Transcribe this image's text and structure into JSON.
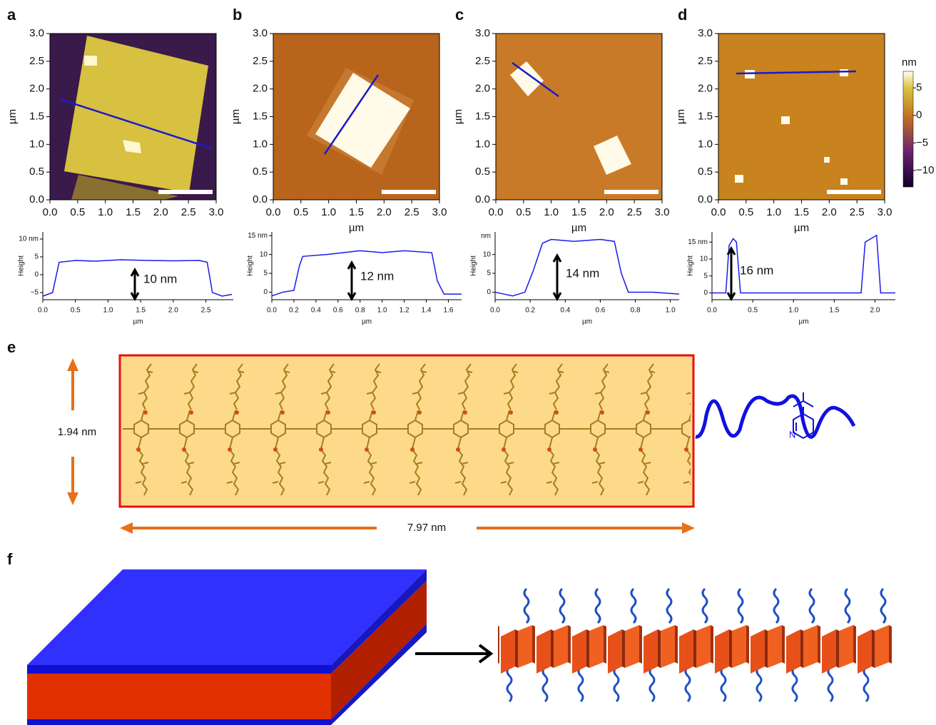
{
  "afm_panels": [
    {
      "label": "a",
      "ylabel": "µm",
      "xlim": [
        0,
        3
      ],
      "ylim": [
        0,
        3
      ],
      "xticks": [
        {
          "value": 0,
          "label": "0.0"
        },
        0.5,
        {
          "value": 1,
          "label": "1.0"
        },
        1.5,
        {
          "value": 2,
          "label": "2.0"
        },
        2.5,
        {
          "value": 3,
          "label": "3.0"
        }
      ],
      "yticks": [
        {
          "value": 0,
          "label": "0.0"
        },
        0.5,
        {
          "value": 1,
          "label": "1.0"
        },
        1.5,
        {
          "value": 2,
          "label": "2.0"
        },
        2.5,
        {
          "value": 3,
          "label": "3.0"
        }
      ]
    },
    {
      "label": "b",
      "ylabel": "µm",
      "xlabel": "µm",
      "xlim": [
        0,
        3
      ],
      "ylim": [
        0,
        3
      ],
      "xticks": [
        {
          "value": 0,
          "label": "0.0"
        },
        0.5,
        {
          "value": 1,
          "label": "1.0"
        },
        1.5,
        {
          "value": 2,
          "label": "2.0"
        },
        2.5,
        {
          "value": 3,
          "label": "3.0"
        }
      ],
      "yticks": [
        {
          "value": 0,
          "label": "0.0"
        },
        0.5,
        {
          "value": 1,
          "label": "1.0"
        },
        1.5,
        {
          "value": 2,
          "label": "2.0"
        },
        2.5,
        {
          "value": 3,
          "label": "3.0"
        }
      ]
    },
    {
      "label": "c",
      "ylabel": "µm",
      "xlabel": "µm",
      "xlim": [
        0,
        3
      ],
      "ylim": [
        0,
        3
      ],
      "xticks": [
        {
          "value": 0,
          "label": "0.0"
        },
        0.5,
        {
          "value": 1,
          "label": "1.0"
        },
        1.5,
        {
          "value": 2,
          "label": "2.0"
        },
        2.5,
        {
          "value": 3,
          "label": "3.0"
        }
      ],
      "yticks": [
        {
          "value": 0,
          "label": "0.0"
        },
        0.5,
        {
          "value": 1,
          "label": "1.0"
        },
        1.5,
        {
          "value": 2,
          "label": "2.0"
        },
        2.5,
        {
          "value": 3,
          "label": "3.0"
        }
      ]
    },
    {
      "label": "d",
      "ylabel": "µm",
      "xlabel": "µm",
      "xlim": [
        0,
        3
      ],
      "ylim": [
        0,
        3
      ],
      "xticks": [
        {
          "value": 0,
          "label": "0.0"
        },
        0.5,
        {
          "value": 1,
          "label": "1.0"
        },
        1.5,
        {
          "value": 2,
          "label": "2.0"
        },
        2.5,
        {
          "value": 3,
          "label": "3.0"
        }
      ],
      "yticks": [
        {
          "value": 0,
          "label": "0.0"
        },
        0.5,
        {
          "value": 1,
          "label": "1.0"
        },
        1.5,
        {
          "value": 2,
          "label": "2.0"
        },
        2.5,
        {
          "value": 3,
          "label": "3.0"
        }
      ]
    }
  ],
  "colorbar": {
    "label": "nm",
    "lim": [
      -13,
      8
    ],
    "ticks": [
      5,
      0,
      {
        "value": -5,
        "label": "−5"
      },
      {
        "value": -10,
        "label": "−10"
      }
    ]
  },
  "chart_data": [
    {
      "type": "line",
      "ylabel": "Height",
      "xlabel": "µm",
      "annotation": "10 nm",
      "color": "#1a1aee",
      "x": [
        0,
        0.15,
        0.25,
        0.5,
        0.8,
        1.2,
        1.6,
        2.0,
        2.4,
        2.52,
        2.6,
        2.75,
        2.9
      ],
      "values": [
        -6,
        -5,
        3.5,
        4,
        3.8,
        4.2,
        4,
        3.9,
        4,
        3.5,
        -5,
        -6,
        -5.5
      ],
      "xlim": [
        0,
        2.92
      ],
      "ylim": [
        -7,
        12
      ],
      "xticks": [
        {
          "value": 0,
          "label": "0.0"
        },
        0.5,
        {
          "value": 1,
          "label": "1.0"
        },
        1.5,
        {
          "value": 2,
          "label": "2.0"
        },
        2.5
      ],
      "yticks": [
        {
          "value": -5,
          "label": "−5"
        },
        0,
        5,
        {
          "value": 10,
          "label": "10 nm"
        }
      ]
    },
    {
      "type": "line",
      "ylabel": "Height",
      "xlabel": "µm",
      "annotation": "12 nm",
      "color": "#1a1aee",
      "x": [
        0,
        0.1,
        0.2,
        0.25,
        0.28,
        0.5,
        0.8,
        1.0,
        1.2,
        1.45,
        1.5,
        1.56,
        1.72
      ],
      "values": [
        -1,
        0,
        0.5,
        7,
        9.5,
        10,
        11,
        10.5,
        11,
        10.5,
        3,
        -0.5,
        -0.5
      ],
      "xlim": [
        0,
        1.72
      ],
      "ylim": [
        -2,
        16
      ],
      "xticks": [
        {
          "value": 0,
          "label": "0.0"
        },
        0.2,
        0.4,
        0.6,
        0.8,
        {
          "value": 1,
          "label": "1.0"
        },
        1.2,
        1.4,
        1.6
      ],
      "yticks": [
        0,
        5,
        10,
        {
          "value": 15,
          "label": "15 nm"
        }
      ]
    },
    {
      "type": "line",
      "ylabel": "Height",
      "yunit": "nm",
      "xlabel": "µm",
      "annotation": "14 nm",
      "color": "#1a1aee",
      "x": [
        0,
        0.1,
        0.17,
        0.22,
        0.27,
        0.32,
        0.45,
        0.6,
        0.68,
        0.72,
        0.76,
        0.9,
        1.05
      ],
      "values": [
        0,
        -1,
        0,
        6,
        13,
        14,
        13.5,
        14,
        13.5,
        5,
        0,
        0,
        -0.5
      ],
      "xlim": [
        0,
        1.05
      ],
      "ylim": [
        -2,
        16
      ],
      "xticks": [
        {
          "value": 0,
          "label": "0.0"
        },
        0.2,
        0.4,
        0.6,
        0.8,
        {
          "value": 1,
          "label": "1.0"
        }
      ],
      "yticks": [
        0,
        5,
        10
      ]
    },
    {
      "type": "line",
      "ylabel": "Height",
      "xlabel": "µm",
      "annotation": "16 nm",
      "color": "#1a1aee",
      "x": [
        0,
        0.17,
        0.21,
        0.26,
        0.3,
        0.35,
        1.0,
        1.83,
        1.88,
        1.95,
        2.02,
        2.07,
        2.25
      ],
      "values": [
        0,
        0,
        14,
        16,
        15,
        0,
        0,
        0,
        15,
        16,
        17,
        0,
        0
      ],
      "xlim": [
        0,
        2.25
      ],
      "ylim": [
        -2,
        18
      ],
      "xticks": [
        {
          "value": 0,
          "label": "0.0"
        },
        0.5,
        {
          "value": 1,
          "label": "1.0"
        },
        1.5,
        {
          "value": 2,
          "label": "2.0"
        }
      ],
      "yticks": [
        0,
        5,
        10,
        {
          "value": 15,
          "label": "15 nm"
        }
      ]
    }
  ],
  "panel_e": {
    "label": "e",
    "height_label": "1.94 nm",
    "length_label": "7.97 nm"
  },
  "panel_f": {
    "label": "f"
  }
}
